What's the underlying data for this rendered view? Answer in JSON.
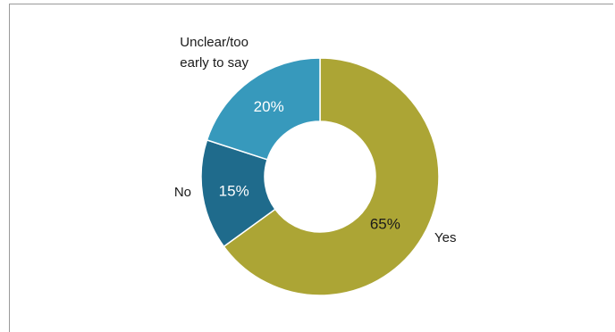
{
  "chart_data": {
    "type": "pie",
    "donut": true,
    "title": "",
    "slices": [
      {
        "label": "Yes",
        "value": 65,
        "value_label": "65%",
        "color": "#ACA535",
        "label_color": "#1a1a1a"
      },
      {
        "label": "No",
        "value": 15,
        "value_label": "15%",
        "color": "#1F6B8C",
        "label_color": "#ffffff"
      },
      {
        "label": "Unclear/too early to say",
        "label_lines": [
          "Unclear/too",
          "early to say"
        ],
        "value": 20,
        "value_label": "20%",
        "color": "#3799BC",
        "label_color": "#ffffff"
      }
    ],
    "start": "12 o'clock",
    "direction": "clockwise",
    "legend": "none"
  }
}
